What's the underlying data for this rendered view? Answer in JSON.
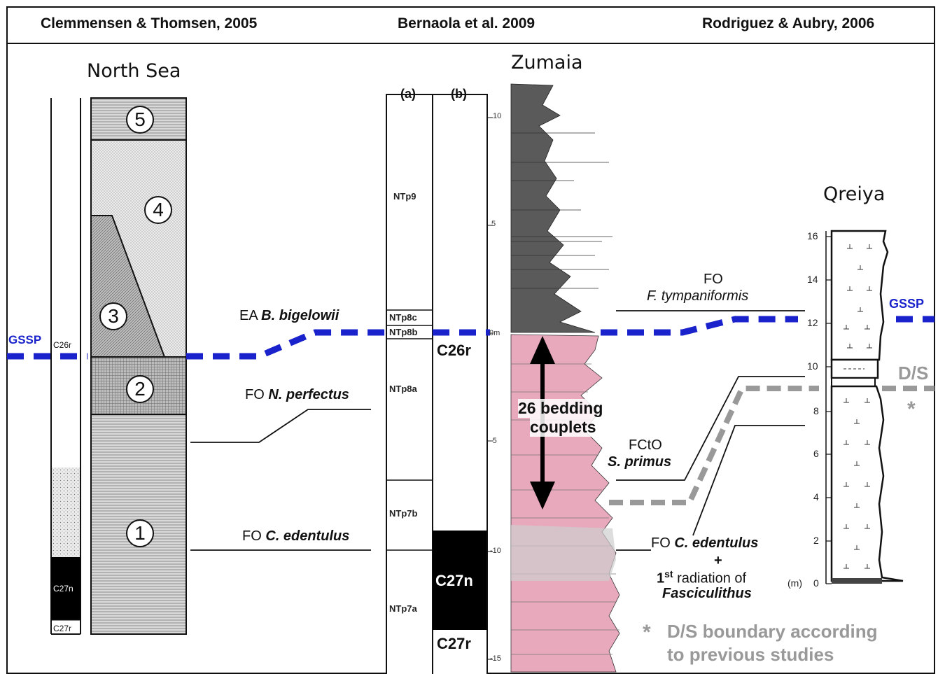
{
  "headers": {
    "left": "Clemmensen & Thomsen, 2005",
    "center": "Bernaola et al. 2009",
    "right": "Rodriguez & Aubry, 2006"
  },
  "sites": {
    "north_sea": "North Sea",
    "zumaia": "Zumaia",
    "qreiya": "Qreiya"
  },
  "north_sea": {
    "units": [
      "1",
      "2",
      "3",
      "4",
      "5"
    ],
    "magnetozones": {
      "c26r": "C26r",
      "c27n": "C27n",
      "c27r": "C27r"
    },
    "gssp": "GSSP"
  },
  "zumaia": {
    "column_a": "(a)",
    "column_b": "(b)",
    "zones": [
      "NTp9",
      "NTp8c",
      "NTp8b",
      "NTp8a",
      "NTp7b",
      "NTp7a"
    ],
    "magnetozones": {
      "c26r": "C26r",
      "c27n": "C27n",
      "c27r": "C27r"
    },
    "scale_ticks": [
      "10",
      "5",
      "0m",
      "-5",
      "-10",
      "-15"
    ],
    "couplets_line1": "26 bedding",
    "couplets_line2": "couplets"
  },
  "events": {
    "ea_prefix": "EA ",
    "ea_taxon": "B. bigelowii",
    "fo_n_prefix": "FO ",
    "fo_n_taxon": "N. perfectus",
    "fo_c_prefix": "FO ",
    "fo_c_taxon": "C. edentulus",
    "fo_f_prefix": "FO",
    "fo_f_taxon": "F. tympaniformis",
    "fcto_prefix": "FCtO",
    "fcto_taxon": "S. primus",
    "fo_c2_prefix": "FO ",
    "fo_c2_taxon": "C. edentulus",
    "plus": "+",
    "radiation_num": "1",
    "radiation_sup": "st",
    "radiation_text": " radiation of",
    "radiation_taxon": "Fasciculithus"
  },
  "qreiya": {
    "scale_ticks": [
      "0",
      "2",
      "4",
      "6",
      "8",
      "10",
      "12",
      "14",
      "16"
    ],
    "unit_label": "(m)",
    "gssp": "GSSP",
    "ds": "D/S",
    "asterisk": "*"
  },
  "legend": {
    "star": "*",
    "line1": "D/S boundary according",
    "line2": "to previous studies"
  },
  "colors": {
    "gssp_blue": "#1a22cc",
    "ds_gray": "#999999",
    "pink": "#e8a9bd",
    "dark_gray": "#555555"
  }
}
